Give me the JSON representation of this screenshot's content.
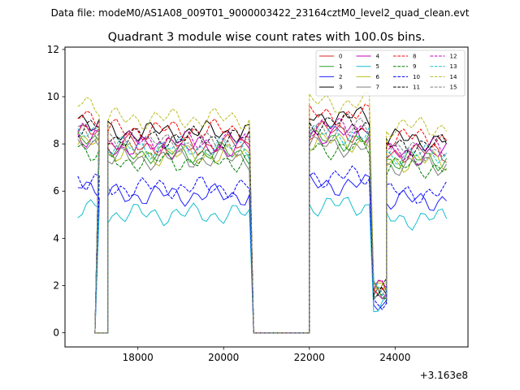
{
  "figure": {
    "suptitle": "Data file: modeM0/AS1A08_009T01_9000003422_23164cztM0_level2_quad_clean.evt",
    "title": "Quadrant 3 module wise count rates with 100.0s bins."
  },
  "chart_data": {
    "type": "line",
    "title": "Quadrant 3 module wise count rates with 100.0s bins.",
    "xlabel": "",
    "ylabel": "",
    "x_offset_label": "+3.163e8",
    "xlim": [
      16300,
      25700
    ],
    "ylim": [
      -0.6,
      12.1
    ],
    "xticks": [
      18000,
      20000,
      22000,
      24000
    ],
    "yticks": [
      0,
      2,
      4,
      6,
      8,
      10,
      12
    ],
    "legend_location": "top-right",
    "segments": [
      {
        "x_start": 16600,
        "n": 6,
        "level": 8.6
      },
      {
        "x_start": 17000,
        "n": 4,
        "level": 0
      },
      {
        "x_start": 17300,
        "n": 34,
        "level": 8.1
      },
      {
        "x_start": 20700,
        "n": 14,
        "level": 0
      },
      {
        "x_start": 22000,
        "n": 15,
        "level": 8.7
      },
      {
        "x_start": 23500,
        "n": 4,
        "level": 1.8
      },
      {
        "x_start": 23800,
        "n": 15,
        "level": 7.8
      }
    ],
    "series": [
      {
        "name": "0",
        "color": "#d62728",
        "dash": "solid",
        "scale": 0.98
      },
      {
        "name": "1",
        "color": "#2ca02c",
        "dash": "solid",
        "scale": 0.94
      },
      {
        "name": "2",
        "color": "#1f1fff",
        "dash": "solid",
        "scale": 0.72
      },
      {
        "name": "3",
        "color": "#000000",
        "dash": "solid",
        "scale": 1.05
      },
      {
        "name": "4",
        "color": "#bf00bf",
        "dash": "solid",
        "scale": 0.97
      },
      {
        "name": "5",
        "color": "#17becf",
        "dash": "solid",
        "scale": 0.62
      },
      {
        "name": "6",
        "color": "#bcbd22",
        "dash": "solid",
        "scale": 0.93
      },
      {
        "name": "7",
        "color": "#7f7f7f",
        "dash": "solid",
        "scale": 0.91
      },
      {
        "name": "8",
        "color": "#ff0000",
        "dash": "dashed",
        "scale": 1.06
      },
      {
        "name": "9",
        "color": "#008000",
        "dash": "dashed",
        "scale": 0.9
      },
      {
        "name": "10",
        "color": "#0000ff",
        "dash": "dashed",
        "scale": 0.76
      },
      {
        "name": "11",
        "color": "#000000",
        "dash": "dashed",
        "scale": 1.02
      },
      {
        "name": "12",
        "color": "#bf00bf",
        "dash": "dashed",
        "scale": 1.0
      },
      {
        "name": "13",
        "color": "#17becf",
        "dash": "dashed",
        "scale": 0.97
      },
      {
        "name": "14",
        "color": "#bcbd22",
        "dash": "dashed",
        "scale": 1.12
      },
      {
        "name": "15",
        "color": "#7f7f7f",
        "dash": "dashed",
        "scale": 0.99
      }
    ]
  }
}
